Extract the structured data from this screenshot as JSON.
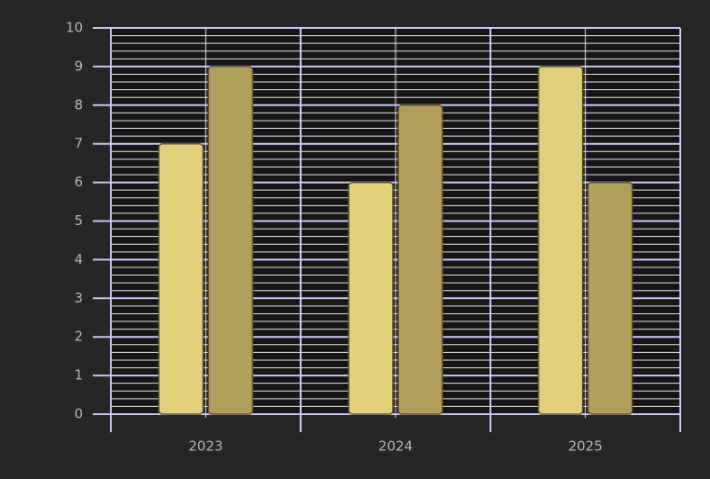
{
  "chart_data": {
    "type": "bar",
    "categories": [
      "2023",
      "2024",
      "2025"
    ],
    "series": [
      {
        "color": "#e0cf7c",
        "values": [
          7,
          6,
          9
        ]
      },
      {
        "color": "#b09e5c",
        "values": [
          9,
          8,
          6
        ]
      }
    ],
    "ylim": [
      0,
      10
    ],
    "yticks": [
      0,
      1,
      2,
      3,
      4,
      5,
      6,
      7,
      8,
      9,
      10
    ],
    "grid": true,
    "minor_grid": true
  }
}
